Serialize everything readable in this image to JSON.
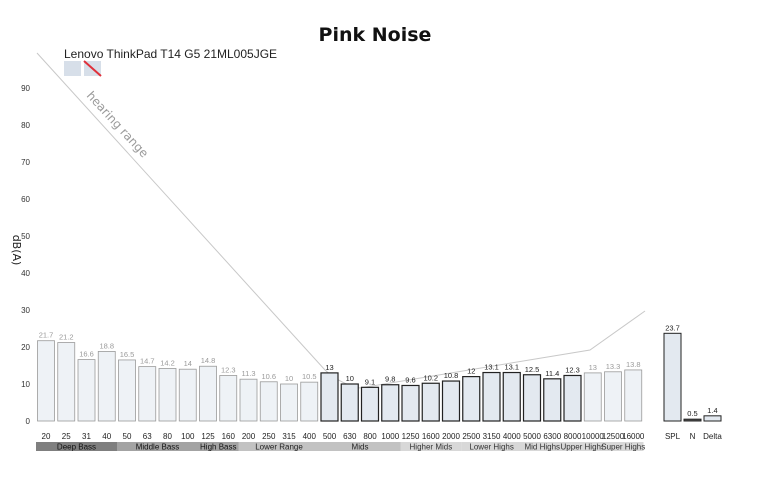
{
  "chart_data": {
    "type": "bar",
    "title": "Pink Noise",
    "ylabel": "dB(A)",
    "ylim": [
      0,
      100
    ],
    "yticks": [
      0,
      10,
      20,
      30,
      40,
      50,
      60,
      70,
      80,
      90
    ],
    "series": [
      {
        "name": "Lenovo ThinkPad T14 G5 21ML005JGE",
        "categories": [
          "20",
          "25",
          "31",
          "40",
          "50",
          "63",
          "80",
          "100",
          "125",
          "160",
          "200",
          "250",
          "315",
          "400",
          "500",
          "630",
          "800",
          "1000",
          "1250",
          "1600",
          "2000",
          "2500",
          "3150",
          "4000",
          "5000",
          "6300",
          "8000",
          "10000",
          "12500",
          "16000"
        ],
        "values": [
          21.7,
          21.2,
          16.6,
          18.8,
          16.5,
          14.7,
          14.2,
          14,
          14.8,
          12.3,
          11.3,
          10.6,
          10,
          10.5,
          13,
          10,
          9.1,
          9.8,
          9.6,
          10.2,
          10.8,
          12,
          13.1,
          13.1,
          12.5,
          11.4,
          12.3,
          13,
          13.3,
          13.8
        ]
      }
    ],
    "summary": {
      "categories": [
        "SPL",
        "N",
        "Delta"
      ],
      "values": [
        23.7,
        0.5,
        1.4
      ]
    },
    "bands": [
      "Deep Bass",
      "Middle Bass",
      "High Bass",
      "Lower Range",
      "Mids",
      "Higher Mids",
      "Lower Highs",
      "Mid Highs",
      "Upper Highs",
      "Super Highs"
    ],
    "annotation": "hearing range",
    "grid": false,
    "legend": "top-left"
  }
}
